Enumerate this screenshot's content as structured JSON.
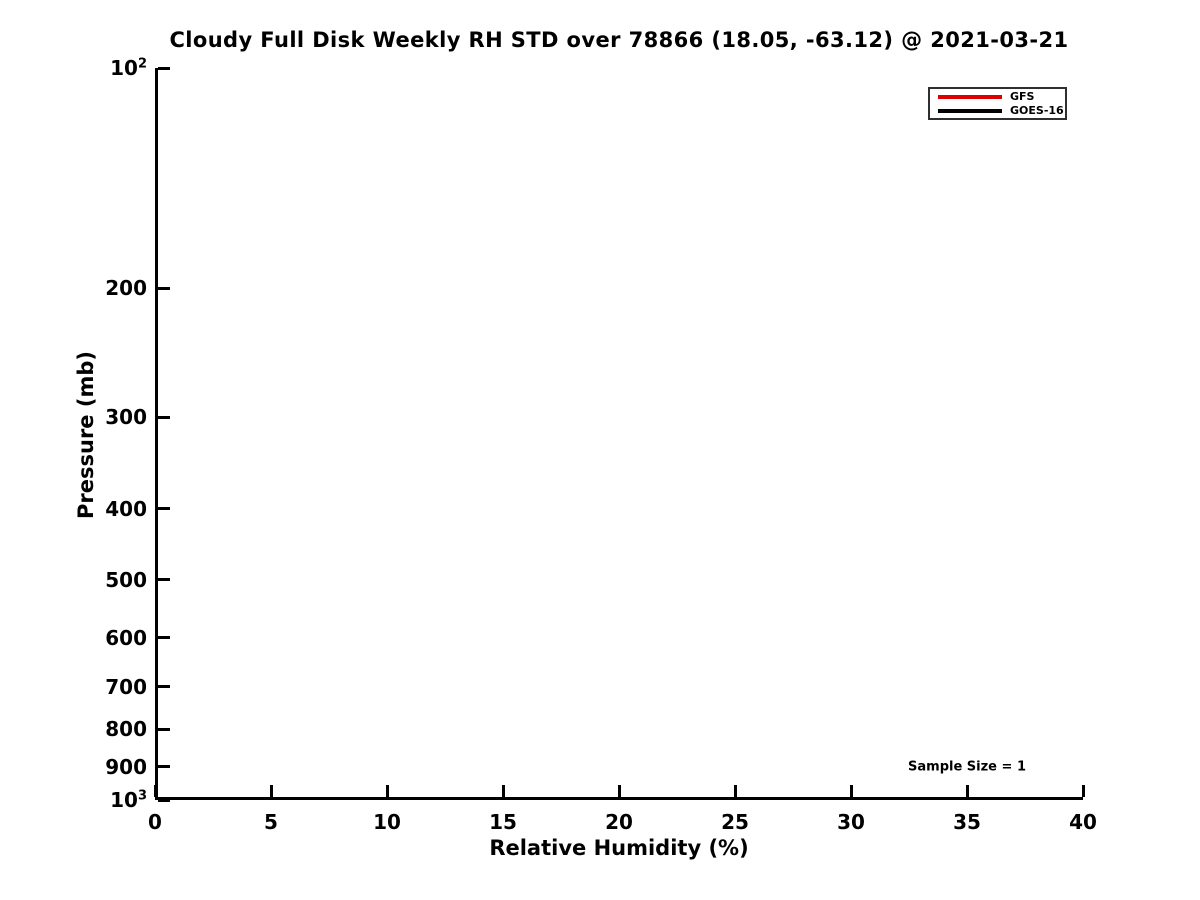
{
  "figure": {
    "background": "#ffffff",
    "text_color": "#000000",
    "axis_color": "#000000"
  },
  "chart_data": {
    "type": "line",
    "title": "Cloudy Full Disk Weekly RH STD over 78866 (18.05, -63.12) @ 2021-03-21",
    "xlabel": "Relative Humidity (%)",
    "ylabel": "Pressure (mb)",
    "xlim": [
      0,
      40
    ],
    "ylim": [
      100,
      1000
    ],
    "y_scale": "log10",
    "y_direction": "pressure-increases-downward",
    "grid": false,
    "x_ticks": [
      {
        "value": 0,
        "label": "0"
      },
      {
        "value": 5,
        "label": "5"
      },
      {
        "value": 10,
        "label": "10"
      },
      {
        "value": 15,
        "label": "15"
      },
      {
        "value": 20,
        "label": "20"
      },
      {
        "value": 25,
        "label": "25"
      },
      {
        "value": 30,
        "label": "30"
      },
      {
        "value": 35,
        "label": "35"
      },
      {
        "value": 40,
        "label": "40"
      }
    ],
    "y_ticks": [
      {
        "value": 100,
        "base": "10",
        "exp": "2"
      },
      {
        "value": 200,
        "label": "200"
      },
      {
        "value": 300,
        "label": "300"
      },
      {
        "value": 400,
        "label": "400"
      },
      {
        "value": 500,
        "label": "500"
      },
      {
        "value": 600,
        "label": "600"
      },
      {
        "value": 700,
        "label": "700"
      },
      {
        "value": 800,
        "label": "800"
      },
      {
        "value": 900,
        "label": "900"
      },
      {
        "value": 1000,
        "base": "10",
        "exp": "3"
      }
    ],
    "legend": {
      "position": "top-right"
    },
    "series": [
      {
        "name": "GFS",
        "color": "#dd0000",
        "x": [],
        "y": []
      },
      {
        "name": "GOES-16",
        "color": "#000000",
        "x": [],
        "y": []
      }
    ],
    "annotation": {
      "text": "Sample Size = 1",
      "x": 35,
      "y": 900
    }
  }
}
